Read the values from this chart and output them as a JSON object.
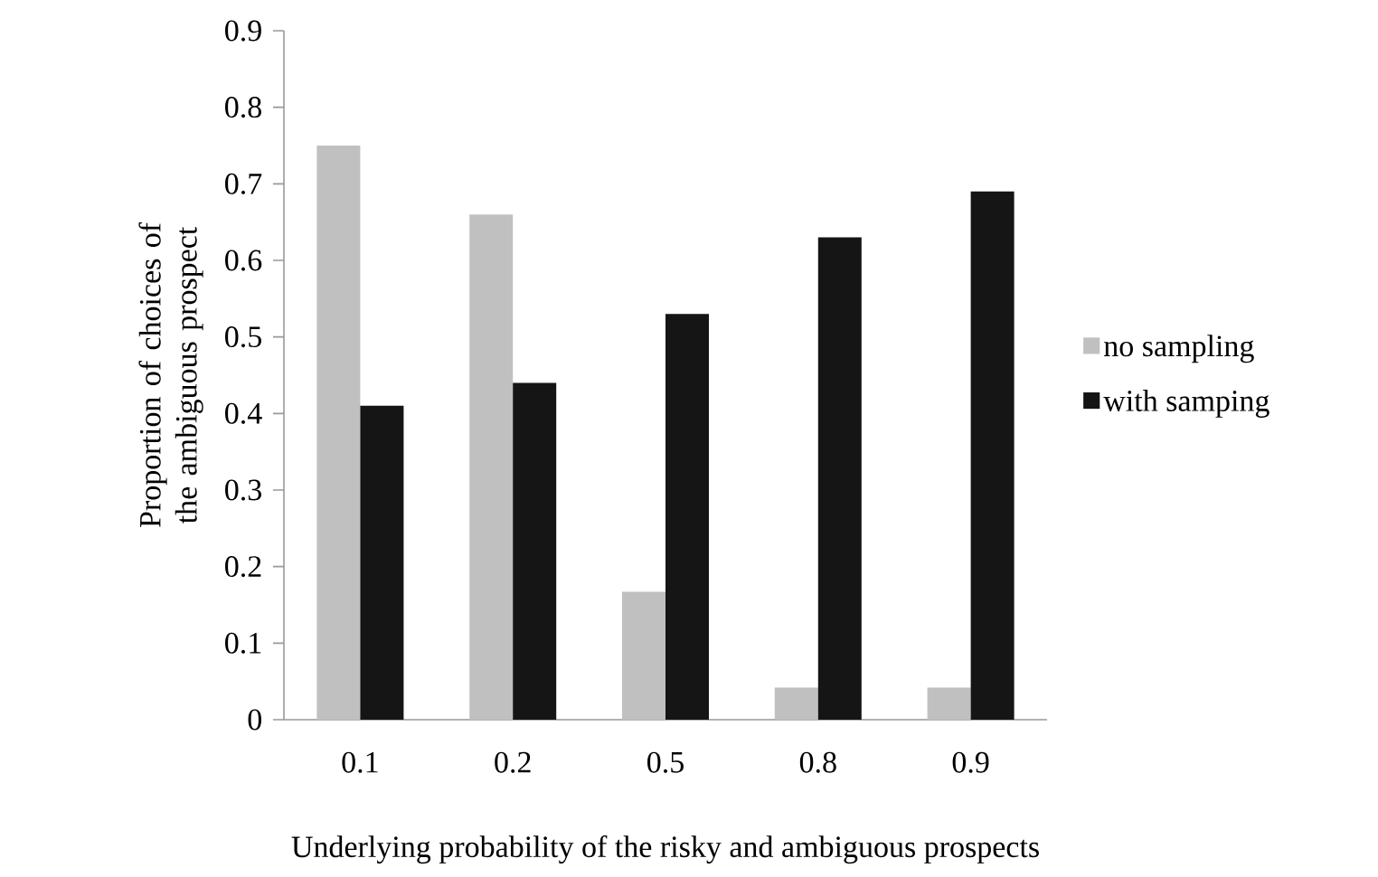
{
  "chart_data": {
    "type": "bar",
    "xlabel": "Underlying probability of the risky and ambiguous prospects",
    "ylabel": "Proportion of choices of the ambiguous prospect",
    "categories": [
      "0.1",
      "0.2",
      "0.5",
      "0.8",
      "0.9"
    ],
    "series": [
      {
        "name": "no sampling",
        "color": "#c0c0c0",
        "values": [
          0.75,
          0.66,
          0.167,
          0.042,
          0.042
        ]
      },
      {
        "name": "with samping",
        "color": "#151515",
        "values": [
          0.41,
          0.44,
          0.53,
          0.63,
          0.69
        ]
      }
    ],
    "ylim": [
      0,
      0.9
    ],
    "yticks": [
      0,
      0.1,
      0.2,
      0.3,
      0.4,
      0.5,
      0.6,
      0.7,
      0.8,
      0.9
    ],
    "legend": "right"
  }
}
